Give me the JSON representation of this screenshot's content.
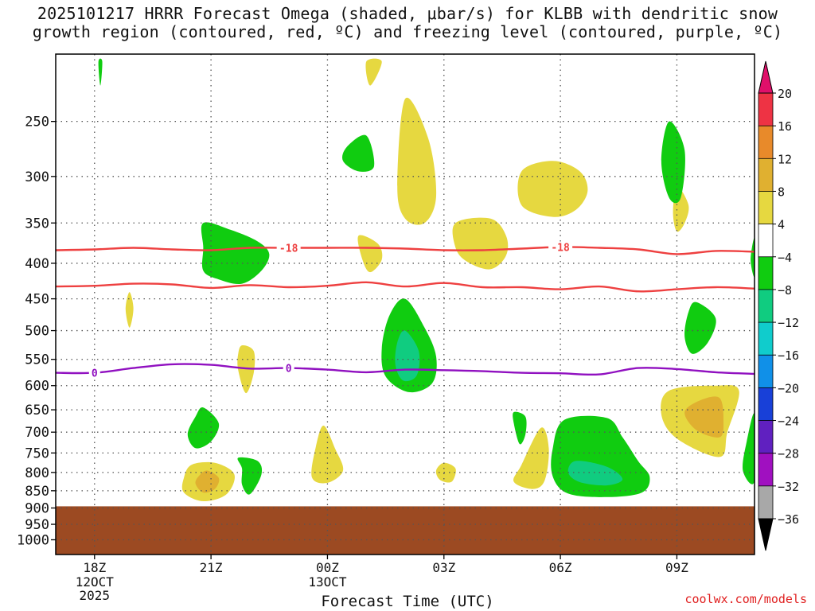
{
  "chart_data": {
    "type": "heatmap",
    "title_line1": "2025101217 HRRR Forecast Omega (shaded, μbar/s) for KLBB with dendritic snow",
    "title_line2": "growth region (contoured, red, ºC) and freezing level (contoured, purple, ºC)",
    "xlabel": "Forecast Time (UTC)",
    "credit": "coolwx.com/models",
    "x_ticks": [
      {
        "hour": 0,
        "label": "18Z",
        "sub1": "12OCT",
        "sub2": "2025"
      },
      {
        "hour": 3,
        "label": "21Z",
        "sub1": "",
        "sub2": ""
      },
      {
        "hour": 6,
        "label": "00Z",
        "sub1": "13OCT",
        "sub2": ""
      },
      {
        "hour": 9,
        "label": "03Z",
        "sub1": "",
        "sub2": ""
      },
      {
        "hour": 12,
        "label": "06Z",
        "sub1": "",
        "sub2": ""
      },
      {
        "hour": 15,
        "label": "09Z",
        "sub1": "",
        "sub2": ""
      }
    ],
    "x_range_hours": [
      -1,
      17
    ],
    "y_ticks": [
      250,
      300,
      350,
      400,
      450,
      500,
      550,
      600,
      650,
      700,
      750,
      800,
      850,
      900,
      950,
      1000
    ],
    "y_range_hpa": [
      200,
      1050
    ],
    "surface_pressure_hpa": 895,
    "colorbar": {
      "levels": [
        20,
        16,
        12,
        8,
        4,
        -4,
        -8,
        -12,
        -16,
        -20,
        -24,
        -28,
        -32,
        -36
      ],
      "colors": [
        "#ee3344",
        "#e88a2a",
        "#e0b030",
        "#e6d840",
        "#ffffff",
        "#10cc10",
        "#10cc80",
        "#10cccc",
        "#1090e8",
        "#1840d8",
        "#6020c0",
        "#a010c0",
        "#a8a8a8"
      ],
      "top_arrow_color": "#e0106a",
      "bottom_arrow_color": "#000000",
      "labels": [
        "20",
        "16",
        "12",
        "8",
        "4",
        "−4",
        "−8",
        "−12",
        "−16",
        "−20",
        "−24",
        "−28",
        "−32",
        "−36"
      ]
    },
    "isotherm_minus18": {
      "label": "-18",
      "color": "#ee4040",
      "label_hours": [
        5.0,
        12.0
      ],
      "hours": [
        -1,
        0,
        1,
        2,
        3,
        4,
        5,
        6,
        7,
        8,
        9,
        10,
        11,
        12,
        13,
        14,
        15,
        16,
        17
      ],
      "pressure": [
        383,
        382,
        380,
        382,
        383,
        380,
        380,
        380,
        380,
        381,
        383,
        383,
        381,
        379,
        380,
        382,
        388,
        384,
        385
      ]
    },
    "isotherm_minus12": {
      "color": "#ee4040",
      "hours": [
        -1,
        0,
        1,
        2,
        3,
        4,
        5,
        6,
        7,
        8,
        9,
        10,
        11,
        12,
        13,
        14,
        15,
        16,
        17
      ],
      "pressure": [
        432,
        431,
        428,
        429,
        434,
        430,
        433,
        431,
        426,
        432,
        427,
        433,
        433,
        436,
        432,
        439,
        436,
        433,
        435
      ]
    },
    "freezing_level": {
      "label": "0",
      "color": "#9010c0",
      "label_hours": [
        0.0,
        5.0
      ],
      "hours": [
        -1,
        0,
        1,
        2,
        3,
        4,
        5,
        6,
        7,
        8,
        9,
        10,
        11,
        12,
        13,
        14,
        15,
        16,
        17
      ],
      "pressure": [
        575,
        575,
        566,
        559,
        560,
        567,
        566,
        569,
        574,
        569,
        570,
        572,
        575,
        576,
        578,
        566,
        568,
        574,
        577
      ]
    },
    "omega_regions": [
      {
        "level": -4,
        "color": "#10cc10",
        "outline": [
          [
            2.8,
            350
          ],
          [
            3.5,
            358
          ],
          [
            4.2,
            372
          ],
          [
            4.5,
            388
          ],
          [
            4.3,
            410
          ],
          [
            3.8,
            428
          ],
          [
            3.2,
            422
          ],
          [
            2.8,
            410
          ],
          [
            2.8,
            380
          ]
        ]
      },
      {
        "level": -4,
        "color": "#10cc10",
        "outline": [
          [
            0.1,
            205
          ],
          [
            0.2,
            205
          ],
          [
            0.15,
            222
          ]
        ]
      },
      {
        "level": -4,
        "color": "#10cc10",
        "outline": [
          [
            6.5,
            272
          ],
          [
            7.0,
            262
          ],
          [
            7.2,
            290
          ],
          [
            6.8,
            295
          ],
          [
            6.4,
            285
          ]
        ]
      },
      {
        "level": -4,
        "color": "#10cc10",
        "outline": [
          [
            8.0,
            450
          ],
          [
            8.5,
            495
          ],
          [
            8.8,
            545
          ],
          [
            8.7,
            595
          ],
          [
            8.1,
            613
          ],
          [
            7.5,
            582
          ],
          [
            7.4,
            530
          ],
          [
            7.6,
            475
          ]
        ]
      },
      {
        "level": -8,
        "color": "#10cc80",
        "outline": [
          [
            8.0,
            500
          ],
          [
            8.35,
            535
          ],
          [
            8.3,
            580
          ],
          [
            7.95,
            590
          ],
          [
            7.75,
            560
          ],
          [
            7.8,
            520
          ]
        ]
      },
      {
        "level": -4,
        "color": "#10cc10",
        "outline": [
          [
            14.8,
            250
          ],
          [
            15.2,
            275
          ],
          [
            15.1,
            322
          ],
          [
            14.8,
            322
          ],
          [
            14.6,
            285
          ]
        ]
      },
      {
        "level": -4,
        "color": "#10cc10",
        "outline": [
          [
            15.5,
            455
          ],
          [
            16.0,
            480
          ],
          [
            15.8,
            520
          ],
          [
            15.4,
            540
          ],
          [
            15.2,
            510
          ],
          [
            15.3,
            470
          ]
        ]
      },
      {
        "level": -4,
        "color": "#10cc10",
        "outline": [
          [
            2.8,
            645
          ],
          [
            3.2,
            680
          ],
          [
            3.0,
            722
          ],
          [
            2.6,
            738
          ],
          [
            2.4,
            705
          ],
          [
            2.6,
            665
          ]
        ]
      },
      {
        "level": -4,
        "color": "#10cc10",
        "outline": [
          [
            3.7,
            762
          ],
          [
            4.2,
            770
          ],
          [
            4.3,
            805
          ],
          [
            4.0,
            860
          ],
          [
            3.8,
            833
          ],
          [
            3.8,
            790
          ]
        ]
      },
      {
        "level": -4,
        "color": "#10cc10",
        "outline": [
          [
            10.8,
            655
          ],
          [
            11.1,
            665
          ],
          [
            11.1,
            705
          ],
          [
            10.95,
            728
          ],
          [
            10.8,
            680
          ]
        ]
      },
      {
        "level": -4,
        "color": "#10cc10",
        "outline": [
          [
            12.1,
            672
          ],
          [
            13.2,
            668
          ],
          [
            13.6,
            712
          ],
          [
            14.0,
            770
          ],
          [
            14.3,
            812
          ],
          [
            14.1,
            855
          ],
          [
            13.2,
            868
          ],
          [
            12.2,
            858
          ],
          [
            11.8,
            810
          ],
          [
            11.8,
            740
          ]
        ]
      },
      {
        "level": -8,
        "color": "#10cc80",
        "outline": [
          [
            12.4,
            770
          ],
          [
            13.2,
            785
          ],
          [
            13.6,
            818
          ],
          [
            13.2,
            835
          ],
          [
            12.5,
            826
          ],
          [
            12.2,
            800
          ]
        ]
      },
      {
        "level": -4,
        "color": "#10cc10",
        "outline": [
          [
            17.0,
            660
          ],
          [
            17.0,
            823
          ],
          [
            16.7,
            795
          ],
          [
            16.8,
            722
          ]
        ]
      },
      {
        "level": -4,
        "color": "#10cc10",
        "outline": [
          [
            17.0,
            368
          ],
          [
            17.0,
            418
          ],
          [
            16.9,
            395
          ]
        ]
      }
    ],
    "positive_regions": [
      {
        "level": 4,
        "color": "#e6d840",
        "outline": [
          [
            8.0,
            232
          ],
          [
            8.6,
            265
          ],
          [
            8.8,
            320
          ],
          [
            8.5,
            350
          ],
          [
            8.0,
            345
          ],
          [
            7.8,
            310
          ]
        ]
      },
      {
        "level": 4,
        "color": "#e6d840",
        "outline": [
          [
            6.8,
            365
          ],
          [
            7.3,
            375
          ],
          [
            7.4,
            395
          ],
          [
            7.1,
            412
          ],
          [
            6.9,
            395
          ]
        ]
      },
      {
        "level": 4,
        "color": "#e6d840",
        "outline": [
          [
            9.3,
            350
          ],
          [
            10.2,
            345
          ],
          [
            10.6,
            365
          ],
          [
            10.6,
            390
          ],
          [
            10.2,
            408
          ],
          [
            9.6,
            398
          ],
          [
            9.3,
            380
          ]
        ]
      },
      {
        "level": 4,
        "color": "#e6d840",
        "outline": [
          [
            11.0,
            295
          ],
          [
            11.8,
            285
          ],
          [
            12.5,
            295
          ],
          [
            12.7,
            315
          ],
          [
            12.4,
            335
          ],
          [
            11.8,
            343
          ],
          [
            11.0,
            330
          ]
        ]
      },
      {
        "level": 4,
        "color": "#e6d840",
        "outline": [
          [
            15.0,
            310
          ],
          [
            15.3,
            330
          ],
          [
            15.2,
            350
          ],
          [
            15.0,
            360
          ],
          [
            14.9,
            338
          ]
        ]
      },
      {
        "level": 4,
        "color": "#e6d840",
        "outline": [
          [
            0.9,
            440
          ],
          [
            1.0,
            465
          ],
          [
            0.9,
            495
          ],
          [
            0.8,
            465
          ]
        ]
      },
      {
        "level": 4,
        "color": "#e6d840",
        "outline": [
          [
            3.8,
            525
          ],
          [
            4.1,
            535
          ],
          [
            4.1,
            575
          ],
          [
            3.9,
            615
          ],
          [
            3.7,
            570
          ],
          [
            3.7,
            540
          ]
        ]
      },
      {
        "level": 4,
        "color": "#e6d840",
        "outline": [
          [
            5.9,
            685
          ],
          [
            6.2,
            740
          ],
          [
            6.4,
            795
          ],
          [
            6.0,
            828
          ],
          [
            5.6,
            813
          ],
          [
            5.7,
            735
          ]
        ]
      },
      {
        "level": 4,
        "color": "#e6d840",
        "outline": [
          [
            9.0,
            775
          ],
          [
            9.3,
            790
          ],
          [
            9.2,
            825
          ],
          [
            8.9,
            820
          ],
          [
            8.8,
            795
          ]
        ]
      },
      {
        "level": 4,
        "color": "#e6d840",
        "outline": [
          [
            11.5,
            690
          ],
          [
            11.7,
            738
          ],
          [
            11.6,
            820
          ],
          [
            11.3,
            845
          ],
          [
            10.8,
            825
          ],
          [
            11.0,
            780
          ]
        ]
      },
      {
        "level": 4,
        "color": "#e6d840",
        "outline": [
          [
            2.5,
            780
          ],
          [
            3.1,
            775
          ],
          [
            3.6,
            805
          ],
          [
            3.4,
            860
          ],
          [
            2.8,
            880
          ],
          [
            2.3,
            855
          ],
          [
            2.3,
            815
          ]
        ]
      },
      {
        "level": 8,
        "color": "#e0b030",
        "outline": [
          [
            2.9,
            795
          ],
          [
            3.2,
            815
          ],
          [
            3.1,
            845
          ],
          [
            2.8,
            855
          ],
          [
            2.6,
            830
          ],
          [
            2.7,
            808
          ]
        ]
      },
      {
        "level": 4,
        "color": "#e6d840",
        "outline": [
          [
            14.8,
            610
          ],
          [
            16.0,
            600
          ],
          [
            16.6,
            610
          ],
          [
            16.3,
            700
          ],
          [
            16.1,
            760
          ],
          [
            15.0,
            715
          ],
          [
            14.6,
            660
          ]
        ]
      },
      {
        "level": 8,
        "color": "#e0b030",
        "outline": [
          [
            15.6,
            630
          ],
          [
            16.1,
            625
          ],
          [
            16.2,
            675
          ],
          [
            16.1,
            712
          ],
          [
            15.5,
            695
          ],
          [
            15.2,
            655
          ]
        ]
      },
      {
        "level": 4,
        "color": "#e6d840",
        "outline": [
          [
            7.0,
            205
          ],
          [
            7.4,
            205
          ],
          [
            7.1,
            222
          ]
        ]
      }
    ]
  }
}
